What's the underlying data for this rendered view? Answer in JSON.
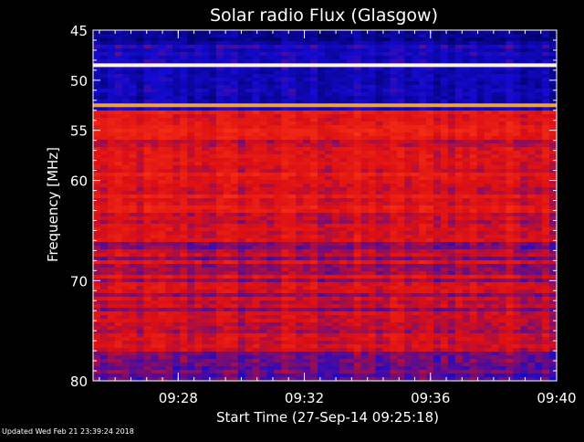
{
  "chart_data": {
    "type": "heatmap",
    "title": "Solar radio Flux (Glasgow)",
    "xlabel": "Start Time (27-Sep-14 09:25:18)",
    "ylabel": "Frequency [MHz]",
    "xlim": [
      "09:25:18",
      "09:40:00"
    ],
    "ylim": [
      45,
      80
    ],
    "y_reversed": true,
    "x_ticks": [
      "09:28",
      "09:32",
      "09:36",
      "09:40"
    ],
    "y_ticks": [
      45,
      50,
      55,
      60,
      70,
      80
    ],
    "colors": {
      "background": "#000000",
      "low": "#1010c8",
      "mid": "#d81010",
      "high": "#ffffff"
    },
    "features": [
      {
        "band_mhz": [
          45,
          53
        ],
        "level": "low"
      },
      {
        "band_mhz": [
          53,
          77
        ],
        "level": "mid"
      },
      {
        "band_mhz": [
          77,
          80
        ],
        "level": "low-mid"
      },
      {
        "freq_mhz": 48.5,
        "level": "high"
      },
      {
        "freq_mhz": 52.5,
        "level": "high"
      }
    ]
  },
  "footer": {
    "text": "Updated Wed Feb 21 23:39:24 2018"
  }
}
